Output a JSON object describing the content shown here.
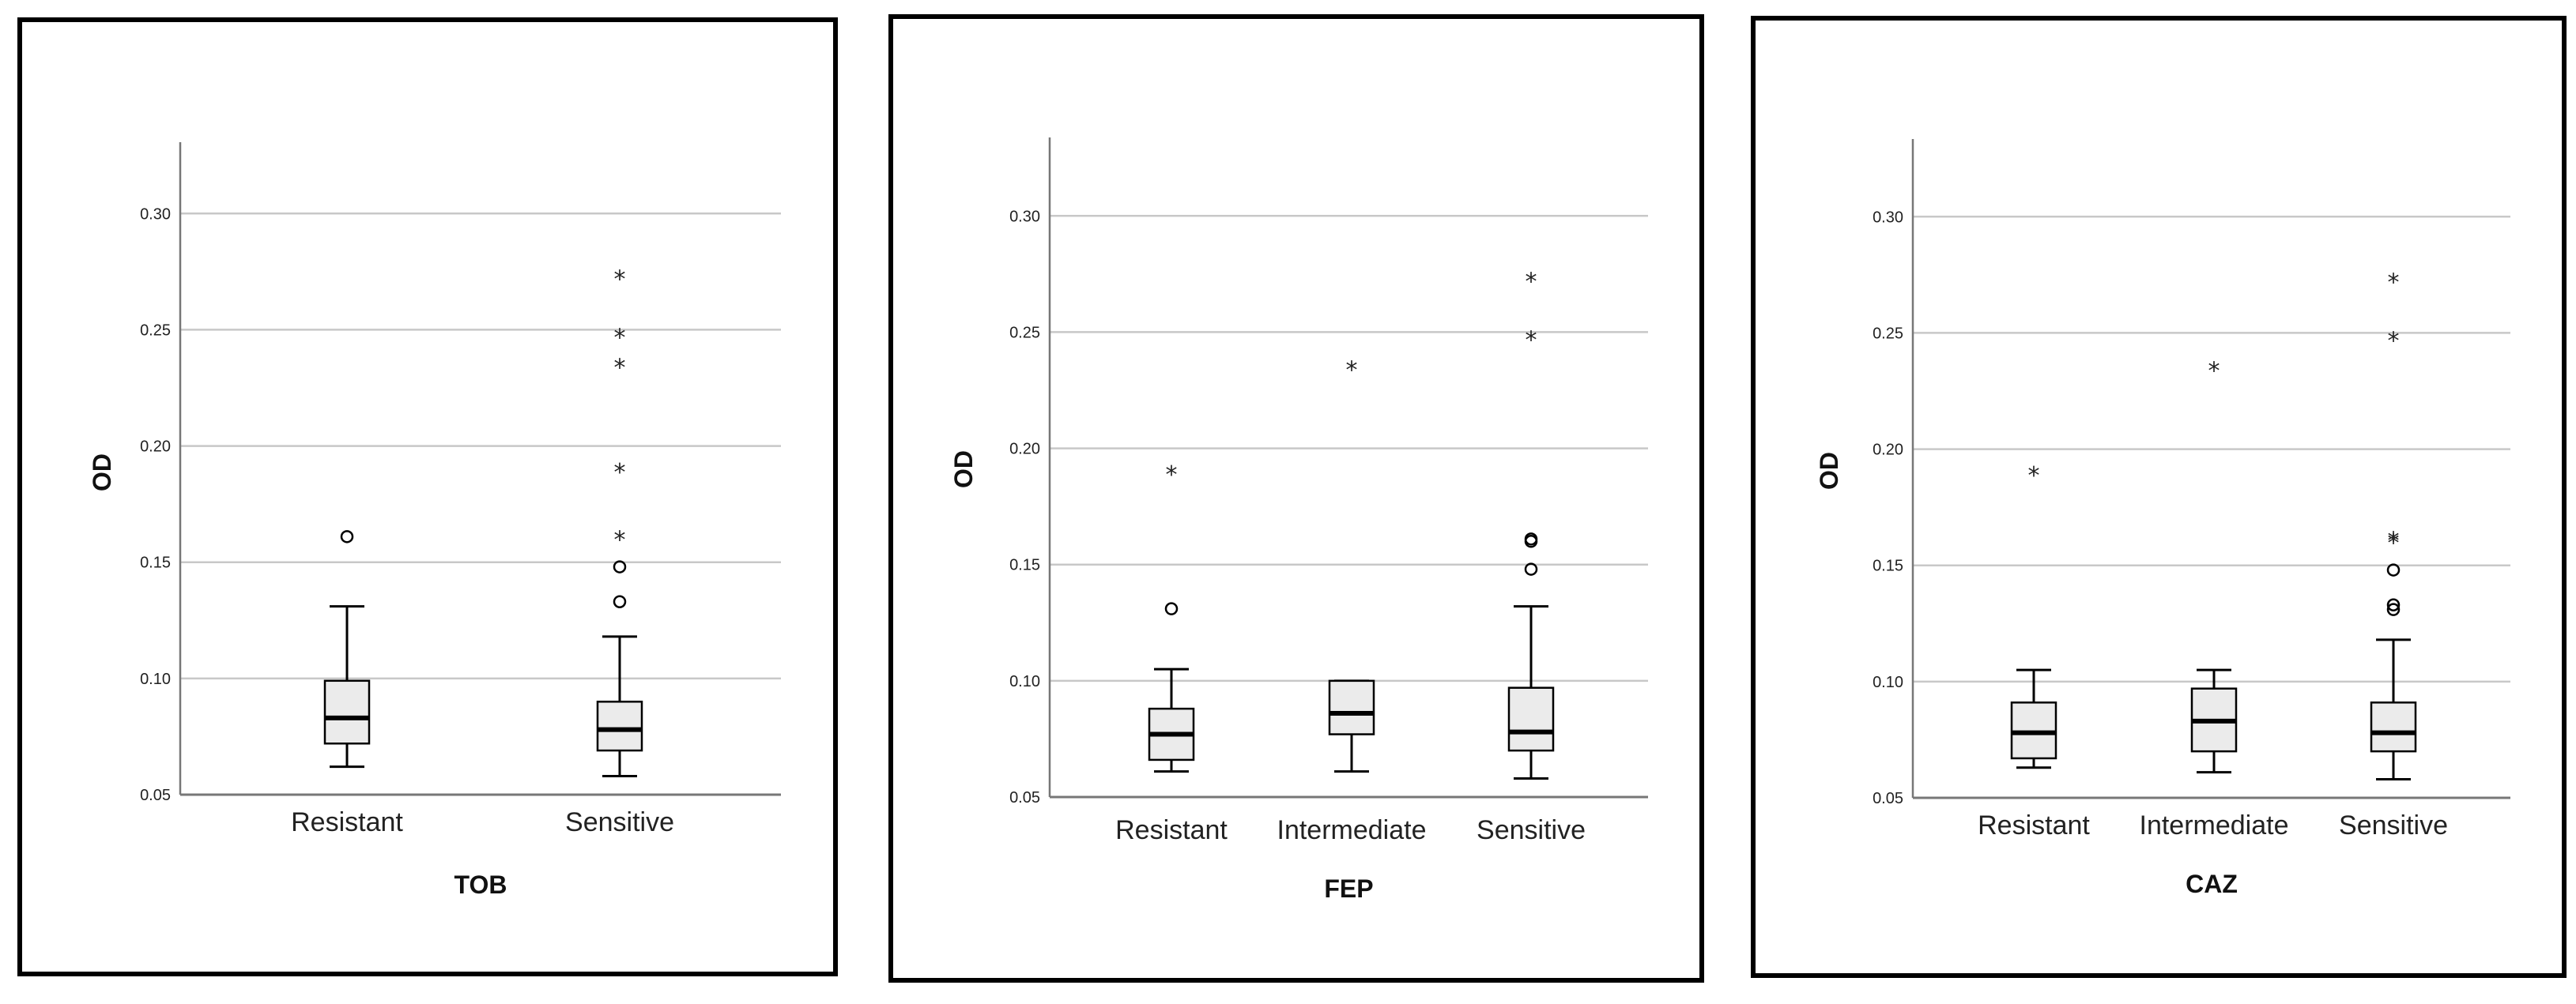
{
  "colors": {
    "box_fill": "#ebebeb",
    "grid": "#c8c8c8",
    "axis": "#777777",
    "ink": "#000000"
  },
  "chart_data": [
    {
      "type": "box",
      "xlabel": "TOB",
      "ylabel": "OD",
      "ylim": [
        0.05,
        0.33
      ],
      "yticks": [
        "0.05",
        "0.10",
        "0.15",
        "0.20",
        "0.25",
        "0.30"
      ],
      "grid": true,
      "categories": [
        "Resistant",
        "Sensitive"
      ],
      "boxes": [
        {
          "category": "Resistant",
          "min": 0.062,
          "q1": 0.072,
          "median": 0.083,
          "q3": 0.099,
          "max": 0.131,
          "outliers_circle": [
            0.161
          ],
          "outliers_star": []
        },
        {
          "category": "Sensitive",
          "min": 0.058,
          "q1": 0.069,
          "median": 0.078,
          "q3": 0.09,
          "max": 0.118,
          "outliers_circle": [
            0.133,
            0.148
          ],
          "outliers_star": [
            0.161,
            0.19,
            0.235,
            0.248,
            0.273
          ]
        }
      ]
    },
    {
      "type": "box",
      "xlabel": "FEP",
      "ylabel": "OD",
      "ylim": [
        0.05,
        0.33
      ],
      "yticks": [
        "0.05",
        "0.10",
        "0.15",
        "0.20",
        "0.25",
        "0.30"
      ],
      "grid": true,
      "categories": [
        "Resistant",
        "Intermediate",
        "Sensitive"
      ],
      "boxes": [
        {
          "category": "Resistant",
          "min": 0.061,
          "q1": 0.066,
          "median": 0.077,
          "q3": 0.088,
          "max": 0.105,
          "outliers_circle": [
            0.131
          ],
          "outliers_star": [
            0.19
          ]
        },
        {
          "category": "Intermediate",
          "min": 0.061,
          "q1": 0.077,
          "median": 0.086,
          "q3": 0.1,
          "max": 0.1,
          "outliers_circle": [],
          "outliers_star": [
            0.235
          ]
        },
        {
          "category": "Sensitive",
          "min": 0.058,
          "q1": 0.07,
          "median": 0.078,
          "q3": 0.097,
          "max": 0.132,
          "outliers_circle": [
            0.148,
            0.16,
            0.161
          ],
          "outliers_star": [
            0.248,
            0.273
          ]
        }
      ]
    },
    {
      "type": "box",
      "xlabel": "CAZ",
      "ylabel": "OD",
      "ylim": [
        0.05,
        0.33
      ],
      "yticks": [
        "0.05",
        "0.10",
        "0.15",
        "0.20",
        "0.25",
        "0.30"
      ],
      "grid": true,
      "categories": [
        "Resistant",
        "Intermediate",
        "Sensitive"
      ],
      "boxes": [
        {
          "category": "Resistant",
          "min": 0.063,
          "q1": 0.067,
          "median": 0.078,
          "q3": 0.091,
          "max": 0.105,
          "outliers_circle": [],
          "outliers_star": [
            0.19
          ]
        },
        {
          "category": "Intermediate",
          "min": 0.061,
          "q1": 0.07,
          "median": 0.083,
          "q3": 0.097,
          "max": 0.105,
          "outliers_circle": [],
          "outliers_star": [
            0.235
          ]
        },
        {
          "category": "Sensitive",
          "min": 0.058,
          "q1": 0.07,
          "median": 0.078,
          "q3": 0.091,
          "max": 0.118,
          "outliers_circle": [
            0.131,
            0.133,
            0.148
          ],
          "outliers_star": [
            0.161,
            0.162,
            0.248,
            0.273
          ]
        }
      ]
    }
  ]
}
